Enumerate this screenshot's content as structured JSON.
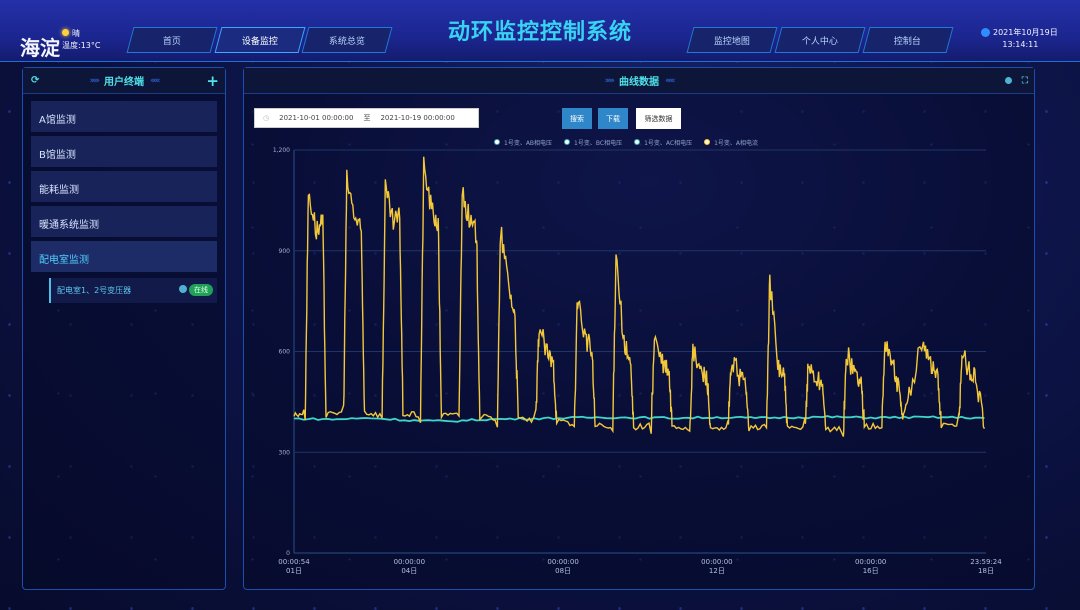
{
  "header": {
    "city": "海淀",
    "weather": "晴",
    "temperature": "温度:13°C",
    "title": "动环监控控制系统",
    "date": "2021年10月19日",
    "time": "13:14:11",
    "nav_left": [
      "首页",
      "设备监控",
      "系统总览"
    ],
    "nav_right": [
      "监控地图",
      "个人中心",
      "控制台"
    ],
    "active_nav": "设备监控"
  },
  "sidebar": {
    "title": "用户终端",
    "items": [
      {
        "label": "A馆监测"
      },
      {
        "label": "B馆监测"
      },
      {
        "label": "能耗监测"
      },
      {
        "label": "暖通系统监测"
      },
      {
        "label": "配电室监测",
        "active": true
      }
    ],
    "sub_item": {
      "label": "配电室1、2号变压器",
      "status": "在线",
      "status_color": "#1fa15a"
    }
  },
  "main": {
    "title": "曲线数据",
    "date_from": "2021-10-01 00:00:00",
    "date_sep": "至",
    "date_to": "2021-10-19 00:00:00",
    "buttons": {
      "search": "搜索",
      "download": "下载",
      "filter": "筛选数据"
    }
  },
  "chart_data": {
    "type": "line",
    "ylim": [
      0,
      1200
    ],
    "yticks": [
      "0",
      "300",
      "600",
      "900",
      "1,200"
    ],
    "grid": true,
    "legend": "top",
    "xlim": [
      "2021-10-01T00:00:54",
      "2021-10-18T23:59:24"
    ],
    "xticks": [
      {
        "time": "00:00:54",
        "day": "01日",
        "t": "2021-10-01T00:00:54"
      },
      {
        "time": "00:00:00",
        "day": "04日",
        "t": "2021-10-04T00:00:00"
      },
      {
        "time": "00:00:00",
        "day": "08日",
        "t": "2021-10-08T00:00:00"
      },
      {
        "time": "00:00:00",
        "day": "12日",
        "t": "2021-10-12T00:00:00"
      },
      {
        "time": "00:00:00",
        "day": "16日",
        "t": "2021-10-16T00:00:00"
      },
      {
        "time": "23:59:24",
        "day": "18日",
        "t": "2021-10-18T23:59:24"
      }
    ],
    "series": [
      {
        "name": "1号变、AB相电压",
        "color": "#ffffff",
        "points": []
      },
      {
        "name": "1号变、BC相电压",
        "color": "#3fd6c8",
        "points": [
          [
            "01T00",
            400
          ],
          [
            "02T00",
            398
          ],
          [
            "03T00",
            402
          ],
          [
            "04T00",
            395
          ],
          [
            "05T00",
            392
          ],
          [
            "06T00",
            398
          ],
          [
            "07T00",
            400
          ],
          [
            "08T00",
            402
          ],
          [
            "09T00",
            404
          ],
          [
            "10T00",
            403
          ],
          [
            "11T00",
            402
          ],
          [
            "12T00",
            404
          ],
          [
            "13T00",
            402
          ],
          [
            "14T00",
            404
          ],
          [
            "15T00",
            405
          ],
          [
            "16T00",
            403
          ],
          [
            "17T00",
            404
          ],
          [
            "18T00",
            404
          ],
          [
            "18T23",
            402
          ]
        ]
      },
      {
        "name": "1号变、AC相电压",
        "color": "#7ee8a8",
        "points": []
      },
      {
        "name": "1号变、A相电流",
        "color": "#f2c83a",
        "points": [
          [
            "01T00",
            410
          ],
          [
            "01T07",
            420
          ],
          [
            "01T09",
            1080
          ],
          [
            "01T14",
            960
          ],
          [
            "01T18",
            980
          ],
          [
            "01T20",
            410
          ],
          [
            "02T07",
            420
          ],
          [
            "02T09",
            1110
          ],
          [
            "02T14",
            1000
          ],
          [
            "02T18",
            950
          ],
          [
            "02T20",
            420
          ],
          [
            "03T07",
            410
          ],
          [
            "03T09",
            1080
          ],
          [
            "03T14",
            980
          ],
          [
            "03T18",
            1000
          ],
          [
            "03T20",
            415
          ],
          [
            "04T07",
            410
          ],
          [
            "04T09",
            1150
          ],
          [
            "04T14",
            1020
          ],
          [
            "04T18",
            980
          ],
          [
            "04T20",
            410
          ],
          [
            "05T07",
            410
          ],
          [
            "05T09",
            1080
          ],
          [
            "05T14",
            980
          ],
          [
            "05T18",
            950
          ],
          [
            "05T20",
            405
          ],
          [
            "06T07",
            400
          ],
          [
            "06T09",
            960
          ],
          [
            "06T14",
            800
          ],
          [
            "06T18",
            700
          ],
          [
            "06T20",
            400
          ],
          [
            "07T07",
            395
          ],
          [
            "07T09",
            680
          ],
          [
            "07T14",
            590
          ],
          [
            "07T18",
            560
          ],
          [
            "07T20",
            395
          ],
          [
            "08T07",
            380
          ],
          [
            "08T09",
            760
          ],
          [
            "08T14",
            640
          ],
          [
            "08T18",
            600
          ],
          [
            "08T20",
            380
          ],
          [
            "09T07",
            370
          ],
          [
            "09T09",
            900
          ],
          [
            "09T14",
            620
          ],
          [
            "09T18",
            560
          ],
          [
            "09T20",
            375
          ],
          [
            "10T07",
            380
          ],
          [
            "10T09",
            640
          ],
          [
            "10T14",
            560
          ],
          [
            "10T18",
            540
          ],
          [
            "10T20",
            380
          ],
          [
            "11T07",
            370
          ],
          [
            "11T09",
            600
          ],
          [
            "11T14",
            540
          ],
          [
            "11T18",
            520
          ],
          [
            "11T20",
            365
          ],
          [
            "12T07",
            370
          ],
          [
            "12T09",
            570
          ],
          [
            "12T14",
            530
          ],
          [
            "12T18",
            500
          ],
          [
            "12T20",
            370
          ],
          [
            "13T07",
            380
          ],
          [
            "13T09",
            820
          ],
          [
            "13T14",
            560
          ],
          [
            "13T18",
            530
          ],
          [
            "13T20",
            370
          ],
          [
            "14T07",
            370
          ],
          [
            "14T09",
            560
          ],
          [
            "14T14",
            520
          ],
          [
            "14T18",
            500
          ],
          [
            "14T20",
            365
          ],
          [
            "15T07",
            370
          ],
          [
            "15T09",
            590
          ],
          [
            "15T14",
            540
          ],
          [
            "15T18",
            510
          ],
          [
            "15T20",
            375
          ],
          [
            "16T07",
            380
          ],
          [
            "16T09",
            640
          ],
          [
            "16T14",
            560
          ],
          [
            "16T18",
            480
          ],
          [
            "16T20",
            400
          ],
          [
            "17T00",
            470
          ],
          [
            "17T09",
            640
          ],
          [
            "17T14",
            560
          ],
          [
            "17T18",
            520
          ],
          [
            "17T20",
            380
          ],
          [
            "18T07",
            380
          ],
          [
            "18T09",
            600
          ],
          [
            "18T14",
            540
          ],
          [
            "18T18",
            520
          ],
          [
            "18T23",
            370
          ]
        ]
      }
    ]
  }
}
